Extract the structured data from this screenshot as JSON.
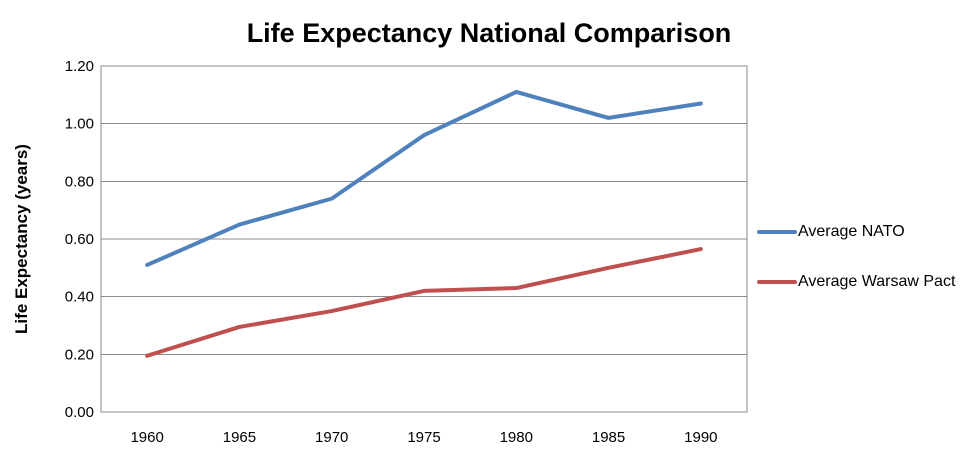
{
  "chart_data": {
    "type": "line",
    "title": "Life Expectancy National Comparison",
    "xlabel": "",
    "ylabel": "Life Expectancy (years)",
    "categories": [
      "1960",
      "1965",
      "1970",
      "1975",
      "1980",
      "1985",
      "1990"
    ],
    "series": [
      {
        "name": "Average NATO",
        "color": "#4F81BD",
        "values": [
          0.51,
          0.65,
          0.74,
          0.96,
          1.11,
          1.02,
          1.07
        ]
      },
      {
        "name": "Average Warsaw Pact",
        "color": "#C0504D",
        "values": [
          0.195,
          0.295,
          0.35,
          0.42,
          0.43,
          0.5,
          0.565
        ]
      }
    ],
    "ylim": [
      0,
      1.2
    ],
    "ytick_step": 0.2,
    "ytick_decimals": 2,
    "grid": "horizontal",
    "gridline_color": "#8C8C8C",
    "plot_border_color": "#8C8C8C",
    "axis_text_color": "#000000",
    "legend_position": "right"
  }
}
